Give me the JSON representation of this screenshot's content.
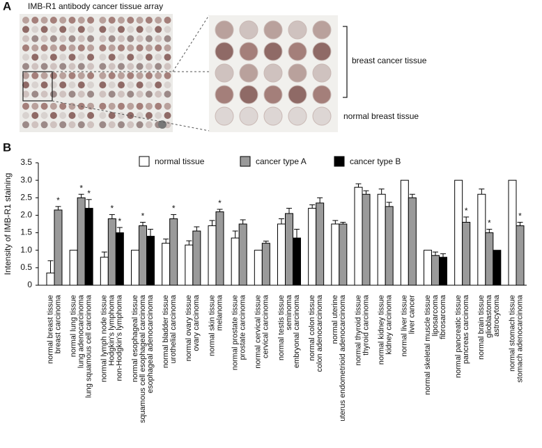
{
  "figure": {
    "panel_a_label": "A",
    "panel_a_title": "IMB-R1 antibody cancer tissue array",
    "zoom_label_top": "breast cancer tissue",
    "zoom_label_bottom": "normal breast tissue",
    "panel_b_label": "B"
  },
  "chart_data": {
    "type": "bar",
    "y_label": "Intensity of IMB-R1 staining",
    "ylim": [
      0,
      3.5
    ],
    "yticks": [
      0,
      0.5,
      {
        "value": 1,
        "label": "1.0"
      },
      1.5,
      {
        "value": 2,
        "label": "2.0"
      },
      2.5,
      {
        "value": 3,
        "label": "3.0"
      },
      3.5
    ],
    "categories": [
      "normal breast tissue",
      "breast carcinoma",
      "normal lung tissue",
      "lung adenocarcinoma",
      "lung squamous cell carcinoma",
      "normal lymph node tissue",
      "Hodgkin's lymphoma",
      "non-Hodgkin's lymphoma",
      "normal esophageal tissue",
      "squamous cell esophageal carcinoma",
      "esophageal adenocarcinoma",
      "normal bladder tissue",
      "urothelial carcinoma",
      "normal ovary tissue",
      "ovary carcinoma",
      "normal skin tissue",
      "melanoma",
      "normal prostate tissue",
      "prostate carcinoma",
      "normal cervical tissue",
      "cervical carcinoma",
      "normal testis tissue",
      "seminoma",
      "embryonal carcinoma",
      "normal colon tissue",
      "colon adenocarcinoma",
      "normal uterine",
      "uterus endometrioid adenocarcinoma",
      "normal thyroid tissue",
      "thyroid carcinoma",
      "normal kidney tissue",
      "kidney carcinoma",
      "normal liver tissue",
      "liver cancer",
      "normal skeletal muscle tissue",
      "liposarcoma",
      "fibrosarcoma",
      "normal pancreatic tissue",
      "pancreas carcinoma",
      "normal brain tissue",
      "glioblastoma",
      "astrocytoma",
      "normal stomach tissue",
      "stomach adenocarcinoma"
    ],
    "series": [
      {
        "name": "normal tissue",
        "color": "#ffffff",
        "values": [
          0.35,
          null,
          1.0,
          null,
          null,
          0.8,
          null,
          null,
          1.0,
          null,
          null,
          1.2,
          null,
          1.15,
          null,
          1.7,
          null,
          1.35,
          null,
          1.0,
          null,
          1.75,
          null,
          null,
          2.2,
          null,
          1.75,
          null,
          2.8,
          null,
          2.6,
          null,
          3.0,
          null,
          1.0,
          null,
          null,
          3.0,
          null,
          2.6,
          null,
          null,
          3.0,
          null
        ],
        "errors": [
          0.35,
          null,
          null,
          null,
          null,
          0.15,
          null,
          null,
          null,
          null,
          null,
          0.12,
          null,
          0.12,
          null,
          0.15,
          null,
          0.2,
          null,
          null,
          null,
          0.15,
          null,
          null,
          0.1,
          null,
          0.1,
          null,
          0.1,
          null,
          0.15,
          null,
          null,
          null,
          null,
          null,
          null,
          null,
          null,
          0.15,
          null,
          null,
          null,
          null
        ],
        "markers": [
          null,
          null,
          null,
          null,
          null,
          null,
          null,
          null,
          null,
          null,
          null,
          null,
          null,
          null,
          null,
          null,
          null,
          null,
          null,
          null,
          null,
          null,
          null,
          null,
          null,
          null,
          null,
          null,
          null,
          null,
          null,
          null,
          null,
          null,
          null,
          null,
          null,
          null,
          null,
          null,
          null,
          null,
          null,
          null
        ]
      },
      {
        "name": "cancer type A",
        "color": "#9a9a9a",
        "values": [
          null,
          2.15,
          null,
          2.5,
          null,
          null,
          1.9,
          null,
          null,
          1.7,
          null,
          null,
          1.9,
          null,
          1.55,
          null,
          2.1,
          null,
          1.75,
          null,
          1.2,
          null,
          2.05,
          null,
          null,
          2.35,
          null,
          1.75,
          null,
          2.6,
          null,
          2.25,
          null,
          2.5,
          null,
          0.85,
          null,
          null,
          1.8,
          null,
          1.5,
          null,
          null,
          1.7
        ],
        "errors": [
          null,
          0.1,
          null,
          0.1,
          null,
          null,
          0.12,
          null,
          null,
          0.1,
          null,
          null,
          0.12,
          null,
          0.12,
          null,
          0.07,
          null,
          0.12,
          null,
          0.06,
          null,
          0.15,
          null,
          null,
          0.15,
          null,
          0.05,
          null,
          0.1,
          null,
          0.12,
          null,
          0.1,
          null,
          0.1,
          null,
          null,
          0.15,
          null,
          0.1,
          null,
          null,
          0.1
        ],
        "markers": [
          null,
          "*",
          null,
          "*",
          null,
          null,
          "*",
          null,
          null,
          "*",
          null,
          null,
          "*",
          null,
          null,
          null,
          "*",
          null,
          null,
          null,
          null,
          null,
          null,
          null,
          null,
          null,
          null,
          null,
          null,
          null,
          null,
          null,
          null,
          null,
          null,
          null,
          null,
          null,
          "*",
          null,
          "*",
          null,
          null,
          "*"
        ]
      },
      {
        "name": "cancer type B",
        "color": "#000000",
        "values": [
          null,
          null,
          null,
          null,
          2.2,
          null,
          null,
          1.5,
          null,
          null,
          1.4,
          null,
          null,
          null,
          null,
          null,
          null,
          null,
          null,
          null,
          null,
          null,
          null,
          1.35,
          null,
          null,
          null,
          null,
          null,
          null,
          null,
          null,
          null,
          null,
          null,
          null,
          0.8,
          null,
          null,
          null,
          null,
          1.0,
          null,
          null
        ],
        "errors": [
          null,
          null,
          null,
          null,
          0.25,
          null,
          null,
          0.15,
          null,
          null,
          0.2,
          null,
          null,
          null,
          null,
          null,
          null,
          null,
          null,
          null,
          null,
          null,
          null,
          0.25,
          null,
          null,
          null,
          null,
          null,
          null,
          null,
          null,
          null,
          null,
          null,
          null,
          0.1,
          null,
          null,
          null,
          null,
          null,
          null,
          null
        ],
        "markers": [
          null,
          null,
          null,
          null,
          "*",
          null,
          null,
          "*",
          null,
          null,
          null,
          null,
          null,
          null,
          null,
          null,
          null,
          null,
          null,
          null,
          null,
          null,
          null,
          null,
          null,
          null,
          null,
          null,
          null,
          null,
          null,
          null,
          null,
          null,
          null,
          null,
          null,
          null,
          null,
          null,
          null,
          null,
          null,
          null
        ]
      }
    ]
  }
}
